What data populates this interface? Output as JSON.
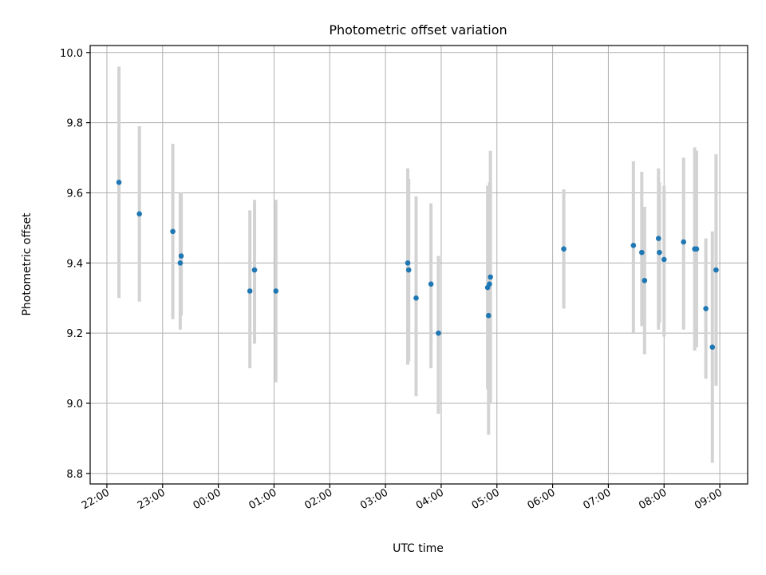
{
  "chart_data": {
    "type": "scatter",
    "title": "Photometric offset variation",
    "xlabel": "UTC time",
    "ylabel": "Photometric offset",
    "x_axis_type": "time",
    "x_start_label": "22:00",
    "xlim_hours": [
      21.7,
      33.5
    ],
    "ylim": [
      8.77,
      10.02
    ],
    "x_ticks": [
      {
        "label": "22:00",
        "h": 22
      },
      {
        "label": "23:00",
        "h": 23
      },
      {
        "label": "00:00",
        "h": 24
      },
      {
        "label": "01:00",
        "h": 25
      },
      {
        "label": "02:00",
        "h": 26
      },
      {
        "label": "03:00",
        "h": 27
      },
      {
        "label": "04:00",
        "h": 28
      },
      {
        "label": "05:00",
        "h": 29
      },
      {
        "label": "06:00",
        "h": 30
      },
      {
        "label": "07:00",
        "h": 31
      },
      {
        "label": "08:00",
        "h": 32
      },
      {
        "label": "09:00",
        "h": 33
      }
    ],
    "y_ticks": [
      "8.8",
      "9.0",
      "9.2",
      "9.4",
      "9.6",
      "9.8",
      "10.0"
    ],
    "grid": true,
    "colors": {
      "point": "#1f77b4",
      "errorbar": "#d3d3d3"
    },
    "series": [
      {
        "points": [
          {
            "t": "22:13",
            "y": 9.63,
            "lo": 9.3,
            "hi": 9.96
          },
          {
            "t": "22:35",
            "y": 9.54,
            "lo": 9.29,
            "hi": 9.79
          },
          {
            "t": "23:11",
            "y": 9.49,
            "lo": 9.24,
            "hi": 9.74
          },
          {
            "t": "23:19",
            "y": 9.4,
            "lo": 9.21,
            "hi": 9.6
          },
          {
            "t": "23:20",
            "y": 9.42,
            "lo": 9.25,
            "hi": 9.6
          },
          {
            "t": "00:34",
            "y": 9.32,
            "lo": 9.1,
            "hi": 9.55
          },
          {
            "t": "00:39",
            "y": 9.38,
            "lo": 9.17,
            "hi": 9.58
          },
          {
            "t": "01:02",
            "y": 9.32,
            "lo": 9.06,
            "hi": 9.58
          },
          {
            "t": "03:24",
            "y": 9.4,
            "lo": 9.11,
            "hi": 9.67
          },
          {
            "t": "03:25",
            "y": 9.38,
            "lo": 9.12,
            "hi": 9.64
          },
          {
            "t": "03:33",
            "y": 9.3,
            "lo": 9.02,
            "hi": 9.59
          },
          {
            "t": "03:49",
            "y": 9.34,
            "lo": 9.1,
            "hi": 9.57
          },
          {
            "t": "03:57",
            "y": 9.2,
            "lo": 8.97,
            "hi": 9.42
          },
          {
            "t": "04:50",
            "y": 9.33,
            "lo": 9.04,
            "hi": 9.62
          },
          {
            "t": "04:51",
            "y": 9.25,
            "lo": 8.91,
            "hi": 9.59
          },
          {
            "t": "04:52",
            "y": 9.34,
            "lo": 9.08,
            "hi": 9.63
          },
          {
            "t": "04:53",
            "y": 9.36,
            "lo": 9.0,
            "hi": 9.72
          },
          {
            "t": "06:12",
            "y": 9.44,
            "lo": 9.27,
            "hi": 9.61
          },
          {
            "t": "07:27",
            "y": 9.45,
            "lo": 9.2,
            "hi": 9.69
          },
          {
            "t": "07:36",
            "y": 9.43,
            "lo": 9.22,
            "hi": 9.66
          },
          {
            "t": "07:39",
            "y": 9.35,
            "lo": 9.14,
            "hi": 9.56
          },
          {
            "t": "07:54",
            "y": 9.47,
            "lo": 9.21,
            "hi": 9.67
          },
          {
            "t": "07:55",
            "y": 9.43,
            "lo": 9.23,
            "hi": 9.63
          },
          {
            "t": "08:00",
            "y": 9.41,
            "lo": 9.19,
            "hi": 9.62
          },
          {
            "t": "08:21",
            "y": 9.46,
            "lo": 9.21,
            "hi": 9.7
          },
          {
            "t": "08:33",
            "y": 9.44,
            "lo": 9.15,
            "hi": 9.73
          },
          {
            "t": "08:35",
            "y": 9.44,
            "lo": 9.16,
            "hi": 9.72
          },
          {
            "t": "08:45",
            "y": 9.27,
            "lo": 9.07,
            "hi": 9.47
          },
          {
            "t": "08:52",
            "y": 9.16,
            "lo": 8.83,
            "hi": 9.49
          },
          {
            "t": "08:56",
            "y": 9.38,
            "lo": 9.05,
            "hi": 9.71
          }
        ]
      }
    ]
  }
}
